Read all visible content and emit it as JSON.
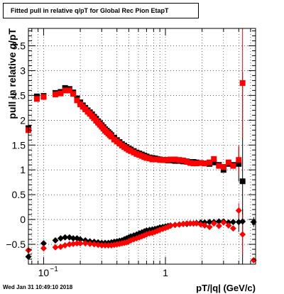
{
  "title": "Fitted pull in relative q/pT for Global Rec Pion EtapT",
  "timestamp": "Wed Jan 31 10:49:10 2018",
  "chart_data": {
    "type": "scatter",
    "title": "Fitted pull in relative q/pT for Global Rec Pion EtapT",
    "xlabel": "pT/|q| (GeV/c)",
    "ylabel": "pull in relative q/pT",
    "x_scale": "log",
    "xlim": [
      0.075,
      5.5
    ],
    "ylim": [
      -0.9,
      3.85
    ],
    "grid": true,
    "x_ticks": [
      {
        "value": 0.1,
        "label": "10",
        "exp": "−1"
      },
      {
        "value": 1,
        "label": "1",
        "exp": ""
      }
    ],
    "y_ticks": [
      {
        "value": -0.5,
        "label": "−0.5"
      },
      {
        "value": 0,
        "label": "0"
      },
      {
        "value": 0.5,
        "label": "0.5"
      },
      {
        "value": 1,
        "label": "1"
      },
      {
        "value": 1.5,
        "label": "1.5"
      },
      {
        "value": 2,
        "label": "2"
      },
      {
        "value": 2.5,
        "label": "2.5"
      },
      {
        "value": 3,
        "label": "3"
      },
      {
        "value": 3.5,
        "label": "3.5"
      }
    ],
    "series": [
      {
        "color": "#000000",
        "marker": "square",
        "x": [
          0.075,
          0.088,
          0.1,
          0.125,
          0.138,
          0.15,
          0.163,
          0.175,
          0.188,
          0.2,
          0.21,
          0.22,
          0.23,
          0.24,
          0.25,
          0.26,
          0.27,
          0.28,
          0.29,
          0.3,
          0.31,
          0.32,
          0.33,
          0.34,
          0.35,
          0.36,
          0.38,
          0.4,
          0.42,
          0.44,
          0.46,
          0.48,
          0.5,
          0.52,
          0.55,
          0.58,
          0.61,
          0.64,
          0.67,
          0.7,
          0.74,
          0.78,
          0.82,
          0.86,
          0.9,
          0.95,
          1.0,
          1.05,
          1.1,
          1.15,
          1.2,
          1.3,
          1.4,
          1.5,
          1.6,
          1.7,
          1.8,
          1.95,
          2.1,
          2.3,
          2.5,
          2.75,
          3.0,
          3.3,
          3.6,
          4.0,
          4.3
        ],
        "y": [
          1.84,
          2.48,
          2.49,
          2.55,
          2.57,
          2.65,
          2.63,
          2.56,
          2.44,
          2.36,
          2.3,
          2.25,
          2.2,
          2.16,
          2.12,
          2.07,
          2.03,
          1.98,
          1.94,
          1.9,
          1.86,
          1.82,
          1.79,
          1.76,
          1.73,
          1.7,
          1.65,
          1.6,
          1.56,
          1.52,
          1.49,
          1.46,
          1.43,
          1.41,
          1.38,
          1.35,
          1.33,
          1.31,
          1.29,
          1.27,
          1.25,
          1.24,
          1.23,
          1.22,
          1.21,
          1.2,
          1.2,
          1.19,
          1.19,
          1.19,
          1.18,
          1.18,
          1.17,
          1.17,
          1.16,
          1.16,
          1.15,
          1.14,
          1.13,
          1.12,
          1.15,
          1.1,
          1.0,
          1.12,
          1.1,
          1.12,
          0.77
        ],
        "err": [
          0,
          0,
          0,
          0,
          0,
          0,
          0,
          0,
          0,
          0,
          0,
          0,
          0,
          0,
          0,
          0,
          0,
          0,
          0,
          0,
          0,
          0,
          0,
          0,
          0,
          0,
          0,
          0,
          0,
          0,
          0,
          0,
          0,
          0,
          0,
          0,
          0,
          0,
          0,
          0,
          0,
          0,
          0,
          0,
          0,
          0,
          0,
          0,
          0,
          0,
          0,
          0,
          0,
          0,
          0,
          0,
          0,
          0,
          0,
          0,
          0,
          0,
          0,
          0,
          0,
          0.35,
          2.2
        ]
      },
      {
        "color": "#ff0000",
        "marker": "square",
        "x": [
          0.075,
          0.088,
          0.1,
          0.125,
          0.138,
          0.15,
          0.163,
          0.175,
          0.188,
          0.2,
          0.21,
          0.22,
          0.23,
          0.24,
          0.25,
          0.26,
          0.27,
          0.28,
          0.29,
          0.3,
          0.31,
          0.32,
          0.33,
          0.34,
          0.35,
          0.36,
          0.38,
          0.4,
          0.42,
          0.44,
          0.46,
          0.48,
          0.5,
          0.52,
          0.55,
          0.58,
          0.61,
          0.64,
          0.67,
          0.7,
          0.74,
          0.78,
          0.82,
          0.86,
          0.9,
          0.95,
          1.0,
          1.05,
          1.1,
          1.15,
          1.2,
          1.3,
          1.4,
          1.5,
          1.6,
          1.7,
          1.8,
          1.95,
          2.1,
          2.3,
          2.5,
          2.75,
          3.0,
          3.3,
          3.6,
          4.0,
          4.3
        ],
        "y": [
          1.8,
          2.43,
          2.47,
          2.52,
          2.54,
          2.6,
          2.6,
          2.53,
          2.4,
          2.32,
          2.27,
          2.22,
          2.17,
          2.13,
          2.08,
          2.04,
          1.99,
          1.95,
          1.91,
          1.87,
          1.83,
          1.79,
          1.76,
          1.73,
          1.7,
          1.67,
          1.61,
          1.57,
          1.53,
          1.49,
          1.46,
          1.43,
          1.4,
          1.38,
          1.35,
          1.32,
          1.3,
          1.28,
          1.26,
          1.24,
          1.23,
          1.21,
          1.21,
          1.21,
          1.2,
          1.2,
          1.2,
          1.2,
          1.21,
          1.21,
          1.21,
          1.2,
          1.19,
          1.16,
          1.14,
          1.13,
          1.13,
          1.14,
          1.13,
          1.15,
          1.22,
          1.08,
          1.06,
          1.15,
          1.08,
          1.2,
          2.75
        ],
        "err": [
          0,
          0,
          0,
          0,
          0,
          0,
          0,
          0,
          0,
          0,
          0,
          0,
          0,
          0,
          0,
          0,
          0,
          0,
          0,
          0,
          0,
          0,
          0,
          0,
          0,
          0,
          0,
          0,
          0,
          0,
          0,
          0,
          0,
          0,
          0,
          0,
          0,
          0,
          0,
          0,
          0,
          0,
          0,
          0,
          0,
          0,
          0,
          0,
          0,
          0,
          0,
          0,
          0,
          0,
          0,
          0,
          0,
          0,
          0,
          0,
          0,
          0,
          0,
          0,
          0,
          0.3,
          1.1
        ]
      },
      {
        "color": "#000000",
        "marker": "diamond",
        "x": [
          0.075,
          0.1,
          0.125,
          0.138,
          0.15,
          0.163,
          0.175,
          0.188,
          0.2,
          0.22,
          0.24,
          0.26,
          0.28,
          0.3,
          0.32,
          0.34,
          0.36,
          0.38,
          0.4,
          0.42,
          0.44,
          0.46,
          0.48,
          0.5,
          0.52,
          0.55,
          0.58,
          0.61,
          0.64,
          0.67,
          0.7,
          0.74,
          0.78,
          0.82,
          0.86,
          0.9,
          0.95,
          1.0,
          1.05,
          1.1,
          1.2,
          1.3,
          1.4,
          1.5,
          1.6,
          1.7,
          1.8,
          1.95,
          2.1,
          2.3,
          2.5,
          2.75,
          3.0,
          3.3,
          3.6,
          4.0,
          4.3,
          5.3
        ],
        "y": [
          -0.75,
          -0.48,
          -0.42,
          -0.38,
          -0.36,
          -0.36,
          -0.38,
          -0.38,
          -0.4,
          -0.42,
          -0.44,
          -0.45,
          -0.46,
          -0.47,
          -0.47,
          -0.47,
          -0.46,
          -0.45,
          -0.44,
          -0.43,
          -0.42,
          -0.4,
          -0.38,
          -0.36,
          -0.34,
          -0.32,
          -0.3,
          -0.28,
          -0.26,
          -0.24,
          -0.22,
          -0.21,
          -0.2,
          -0.19,
          -0.18,
          -0.16,
          -0.15,
          -0.14,
          -0.13,
          -0.12,
          -0.11,
          -0.1,
          -0.09,
          -0.09,
          -0.08,
          -0.08,
          -0.07,
          -0.06,
          -0.06,
          -0.05,
          -0.05,
          -0.04,
          -0.04,
          -0.06,
          -0.05,
          -0.05,
          -0.04,
          -0.05
        ],
        "err": [
          0,
          0,
          0,
          0,
          0,
          0,
          0,
          0,
          0,
          0,
          0,
          0,
          0,
          0,
          0,
          0,
          0,
          0,
          0,
          0,
          0,
          0,
          0,
          0,
          0,
          0,
          0,
          0,
          0,
          0,
          0,
          0,
          0,
          0,
          0,
          0,
          0,
          0,
          0,
          0,
          0,
          0,
          0,
          0,
          0,
          0,
          0,
          0,
          0,
          0,
          0,
          0,
          0,
          0,
          0,
          0.2,
          0.25,
          0.1
        ]
      },
      {
        "color": "#ff0000",
        "marker": "diamond",
        "x": [
          0.075,
          0.1,
          0.125,
          0.138,
          0.15,
          0.163,
          0.175,
          0.188,
          0.2,
          0.22,
          0.24,
          0.26,
          0.28,
          0.3,
          0.32,
          0.34,
          0.36,
          0.38,
          0.4,
          0.42,
          0.44,
          0.46,
          0.48,
          0.5,
          0.52,
          0.55,
          0.58,
          0.61,
          0.64,
          0.67,
          0.7,
          0.74,
          0.78,
          0.82,
          0.86,
          0.9,
          0.95,
          1.0,
          1.05,
          1.1,
          1.2,
          1.3,
          1.4,
          1.5,
          1.6,
          1.7,
          1.8,
          1.95,
          2.1,
          2.3,
          2.5,
          2.75,
          3.0,
          3.3,
          3.6,
          4.0,
          4.3,
          5.3
        ],
        "y": [
          -0.62,
          -0.58,
          -0.56,
          -0.55,
          -0.52,
          -0.5,
          -0.49,
          -0.48,
          -0.48,
          -0.48,
          -0.49,
          -0.5,
          -0.51,
          -0.52,
          -0.52,
          -0.52,
          -0.52,
          -0.51,
          -0.5,
          -0.49,
          -0.48,
          -0.47,
          -0.46,
          -0.44,
          -0.42,
          -0.4,
          -0.38,
          -0.36,
          -0.34,
          -0.32,
          -0.3,
          -0.28,
          -0.27,
          -0.25,
          -0.23,
          -0.21,
          -0.19,
          -0.17,
          -0.15,
          -0.13,
          -0.11,
          -0.1,
          -0.09,
          -0.08,
          -0.08,
          -0.08,
          -0.08,
          -0.1,
          -0.12,
          -0.15,
          -0.08,
          -0.13,
          -0.06,
          -0.12,
          -0.18,
          0.18,
          -0.3,
          -0.82
        ],
        "err": [
          0,
          0,
          0,
          0,
          0,
          0,
          0,
          0,
          0,
          0,
          0,
          0,
          0,
          0,
          0,
          0,
          0,
          0,
          0,
          0,
          0,
          0,
          0,
          0,
          0,
          0,
          0,
          0,
          0,
          0,
          0,
          0,
          0,
          0,
          0,
          0,
          0,
          0,
          0,
          0,
          0,
          0,
          0,
          0,
          0,
          0,
          0,
          0,
          0,
          0,
          0,
          0,
          0,
          0,
          0,
          0.15,
          0.4,
          0
        ]
      }
    ]
  }
}
